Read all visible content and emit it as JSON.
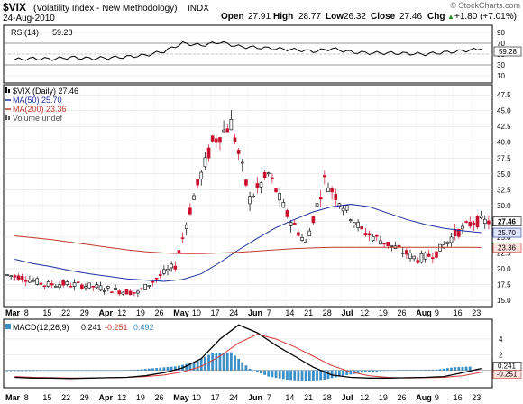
{
  "header": {
    "symbol": "$VIX",
    "description": "(Volatility Index - New Methodology)",
    "exchange": "INDX",
    "date": "24-Aug-2010",
    "watermark": "© StockCharts.com",
    "open_label": "Open",
    "open_value": "27.91",
    "high_label": "High",
    "high_value": "28.77",
    "low_label": "Low",
    "low_value": "26.32",
    "close_label": "Close",
    "close_value": "27.46",
    "chg_label": "Chg",
    "chg_value": "+1.80 (+7.01%)",
    "chg_arrow": "▲"
  },
  "rsi_panel": {
    "label": "RSI(14)",
    "value": "59.28",
    "ticks": [
      90,
      70,
      50,
      30,
      10
    ],
    "thresholds": [
      70,
      30
    ]
  },
  "price_panel": {
    "legend": [
      {
        "text": "$VIX (Daily) 27.46",
        "color": "#000000",
        "swatch": "bars"
      },
      {
        "text": "MA(50) 25.70",
        "color": "#1f2f9f",
        "swatch": "line"
      },
      {
        "text": "MA(200) 23.36",
        "color": "#c0392b",
        "swatch": "line"
      },
      {
        "text": "Volume undef",
        "color": "#555555",
        "swatch": "bars"
      }
    ],
    "y_ticks": [
      15.0,
      17.5,
      20.0,
      22.5,
      25.0,
      27.5,
      30.0,
      32.5,
      35.0,
      37.5,
      40.0,
      42.5,
      45.0,
      47.5
    ],
    "y_tick_labels": [
      "15.0",
      "17.5",
      "20.0",
      "22.5",
      "25.0",
      "27.5",
      "30.0",
      "32.5",
      "35.0",
      "37.5",
      "40.0",
      "42.5",
      "45.0",
      "47.5"
    ],
    "value_labels": [
      {
        "text": "27.46",
        "value": 27.46,
        "fill": "#ffffff",
        "stroke": "#000000"
      },
      {
        "text": "25.70",
        "value": 25.7,
        "fill": "#dfe6ff",
        "stroke": "#1f2f9f"
      },
      {
        "text": "23.36",
        "value": 23.36,
        "fill": "#ffe3e0",
        "stroke": "#c0392b"
      }
    ]
  },
  "macd_panel": {
    "label_prefix": "MACD(12,26,9)",
    "macd_value": "0.241",
    "signal_value": "-0.251",
    "hist_value": "0.492",
    "y_ticks": [
      4,
      2
    ],
    "zero_label": "0.241",
    "second_label": "-0.251"
  },
  "x_axis": {
    "labels": [
      "Mar",
      "8",
      "15",
      "22",
      "29",
      "Apr",
      "12",
      "19",
      "26",
      "May",
      "10",
      "17",
      "24",
      "Jun",
      "7",
      "14",
      "21",
      "28",
      "Jul",
      "12",
      "19",
      "26",
      "Aug",
      "9",
      "16",
      "23"
    ],
    "bold": [
      true,
      false,
      false,
      false,
      false,
      true,
      false,
      false,
      false,
      true,
      false,
      false,
      false,
      true,
      false,
      false,
      false,
      false,
      true,
      false,
      false,
      false,
      true,
      false,
      false,
      false
    ]
  },
  "colors": {
    "up": "#000000",
    "down": "#c8102e",
    "ma50": "#1f2f9f",
    "ma200": "#c0392b",
    "rsi": "#000000",
    "macd": "#000000",
    "signal": "#d63a3a",
    "hist": "#3a8fc8",
    "grid": "#d9d9d9",
    "panel_border": "#000000"
  },
  "chart_data": [
    {
      "type": "line",
      "title": "RSI(14) 59.28",
      "x": [
        "Mar 1",
        "Mar 8",
        "Mar 15",
        "Mar 22",
        "Mar 29",
        "Apr 5",
        "Apr 12",
        "Apr 19",
        "Apr 26",
        "May 3",
        "May 10",
        "May 17",
        "May 24",
        "May 31",
        "Jun 7",
        "Jun 14",
        "Jun 21",
        "Jun 28",
        "Jul 5",
        "Jul 12",
        "Jul 19",
        "Jul 26",
        "Aug 2",
        "Aug 9",
        "Aug 16",
        "Aug 23"
      ],
      "series": [
        {
          "name": "RSI(14)",
          "values": [
            40,
            42,
            41,
            44,
            42,
            43,
            45,
            48,
            55,
            70,
            66,
            72,
            64,
            62,
            60,
            58,
            55,
            60,
            54,
            52,
            52,
            51,
            50,
            53,
            56,
            59.28
          ]
        }
      ],
      "ylim": [
        0,
        100
      ]
    },
    {
      "type": "bar",
      "title": "$VIX (Daily) 27.46",
      "x": [
        "Mar 1",
        "Mar 8",
        "Mar 15",
        "Mar 22",
        "Mar 29",
        "Apr 5",
        "Apr 12",
        "Apr 19",
        "Apr 26",
        "May 3",
        "May 10",
        "May 17",
        "May 24",
        "May 31",
        "Jun 7",
        "Jun 14",
        "Jun 21",
        "Jun 28",
        "Jul 5",
        "Jul 12",
        "Jul 19",
        "Jul 26",
        "Aug 2",
        "Aug 9",
        "Aug 16",
        "Aug 23"
      ],
      "series": [
        {
          "name": "$VIX (Daily)",
          "values": [
            19.0,
            18.5,
            17.5,
            17.6,
            17.4,
            17.0,
            16.5,
            16.2,
            18.5,
            20.5,
            31.5,
            40.0,
            43.0,
            31.0,
            35.0,
            28.5,
            24.0,
            34.0,
            30.0,
            26.0,
            24.5,
            23.0,
            21.5,
            22.5,
            25.5,
            27.46
          ]
        },
        {
          "name": "MA(50)",
          "values": [
            21.5,
            20.8,
            20.3,
            19.7,
            19.2,
            18.8,
            18.4,
            18.2,
            18.0,
            18.3,
            19.2,
            21.0,
            23.0,
            24.8,
            26.5,
            27.8,
            29.0,
            29.8,
            30.2,
            29.8,
            28.8,
            27.8,
            27.0,
            26.4,
            26.0,
            25.7
          ]
        },
        {
          "name": "MA(200)",
          "values": [
            25.2,
            24.9,
            24.6,
            24.2,
            23.8,
            23.4,
            23.0,
            22.7,
            22.5,
            22.4,
            22.4,
            22.5,
            22.6,
            22.8,
            23.0,
            23.2,
            23.3,
            23.4,
            23.4,
            23.4,
            23.4,
            23.4,
            23.4,
            23.4,
            23.4,
            23.36
          ]
        }
      ],
      "ylim": [
        15.0,
        48.5
      ]
    },
    {
      "type": "line",
      "title": "MACD(12,26,9) 0.241, -0.251, 0.492",
      "x": [
        "Mar 1",
        "Mar 8",
        "Mar 15",
        "Mar 22",
        "Mar 29",
        "Apr 5",
        "Apr 12",
        "Apr 19",
        "Apr 26",
        "May 3",
        "May 10",
        "May 17",
        "May 24",
        "May 31",
        "Jun 7",
        "Jun 14",
        "Jun 21",
        "Jun 28",
        "Jul 5",
        "Jul 12",
        "Jul 19",
        "Jul 26",
        "Aug 2",
        "Aug 9",
        "Aug 16",
        "Aug 23"
      ],
      "series": [
        {
          "name": "MACD",
          "values": [
            -0.9,
            -1.0,
            -1.0,
            -1.05,
            -1.0,
            -0.95,
            -0.9,
            -0.7,
            -0.3,
            0.3,
            1.5,
            4.0,
            5.8,
            4.8,
            3.2,
            1.8,
            0.4,
            -0.6,
            -0.9,
            -1.0,
            -1.0,
            -0.95,
            -0.9,
            -0.8,
            -0.3,
            0.241
          ]
        },
        {
          "name": "Signal",
          "values": [
            -0.8,
            -0.9,
            -0.95,
            -1.0,
            -1.0,
            -0.95,
            -0.9,
            -0.8,
            -0.6,
            -0.2,
            0.5,
            1.8,
            3.5,
            4.6,
            4.0,
            3.0,
            1.8,
            0.6,
            -0.2,
            -0.7,
            -0.9,
            -1.0,
            -0.95,
            -0.9,
            -0.7,
            -0.251
          ]
        },
        {
          "name": "Histogram",
          "values": [
            -0.1,
            -0.1,
            -0.05,
            -0.05,
            0.0,
            0.0,
            0.0,
            0.1,
            0.3,
            0.5,
            1.0,
            2.2,
            2.3,
            0.2,
            -0.8,
            -1.2,
            -1.4,
            -1.2,
            -0.7,
            -0.3,
            -0.1,
            0.05,
            0.05,
            0.1,
            0.4,
            0.492
          ]
        }
      ],
      "ylim": [
        -2,
        6
      ]
    }
  ]
}
